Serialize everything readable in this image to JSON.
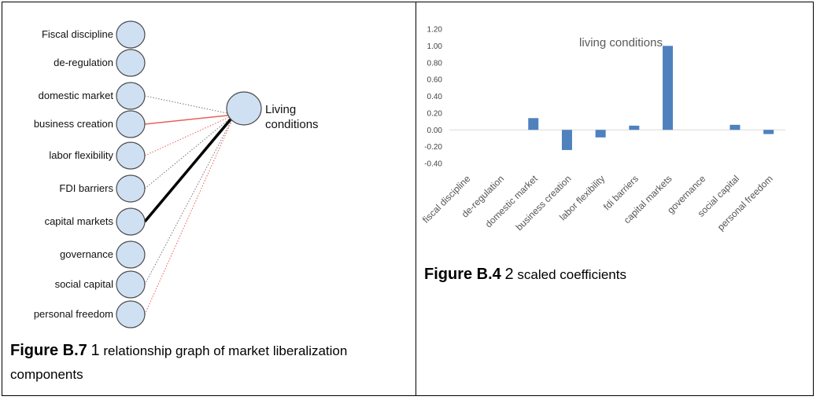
{
  "graph": {
    "nodes": [
      {
        "label": "Fiscal discipline",
        "edge": "none"
      },
      {
        "label": "de-regulation",
        "edge": "none"
      },
      {
        "label": "domestic market",
        "edge": "gray-dotted"
      },
      {
        "label": "business creation",
        "edge": "red-solid"
      },
      {
        "label": "labor flexibility",
        "edge": "red-dotted"
      },
      {
        "label": "FDI barriers",
        "edge": "gray-dotted"
      },
      {
        "label": "capital markets",
        "edge": "black-thick"
      },
      {
        "label": "governance",
        "edge": "none"
      },
      {
        "label": "social capital",
        "edge": "gray-dotted"
      },
      {
        "label": "personal freedom",
        "edge": "red-dotted"
      }
    ],
    "target": {
      "line1": "Living",
      "line2": "conditions"
    },
    "colors": {
      "node_fill": "#cfe0f3",
      "node_stroke": "#4a4a4a",
      "red": "#e8605a",
      "gray": "#777777",
      "black": "#000000"
    }
  },
  "caption_b7": {
    "fig_num": "Figure B.7",
    "fig_idx": "1",
    "text": "relationship graph of market liberalization components"
  },
  "chart_data": {
    "type": "bar",
    "title": "living conditions",
    "categories": [
      "fiscal discipline",
      "de-regulation",
      "domestic market",
      "business creation",
      "labor flexibility",
      "fdi barriers",
      "capital markets",
      "governance",
      "social capital",
      "personal freedom"
    ],
    "values": [
      0,
      0,
      0.14,
      -0.24,
      -0.09,
      0.05,
      1.0,
      0,
      0.06,
      -0.05
    ],
    "yticks": [
      "1.20",
      "1.00",
      "0.80",
      "0.60",
      "0.40",
      "0.20",
      "0.00",
      "-0.20",
      "-0.40"
    ],
    "ylim": [
      -0.4,
      1.2
    ],
    "grid": false,
    "bar_color": "#4f81bd"
  },
  "caption_b4": {
    "fig_num": "Figure B.4",
    "fig_idx": "2",
    "text": "scaled coefficients"
  }
}
